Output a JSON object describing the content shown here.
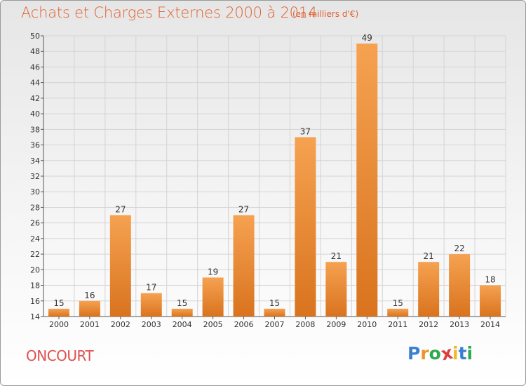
{
  "header": {
    "title": "Achats et Charges Externes 2000 à 2014",
    "unit": "(en milliers d'€)"
  },
  "footer": {
    "commune": "ONCOURT",
    "logo": [
      "P",
      "r",
      "o",
      "x",
      "i",
      "t",
      "i"
    ]
  },
  "colors": {
    "bar_light": "#f5a251",
    "bar_dark": "#d9731e",
    "title": "#e06030",
    "commune": "#e05050",
    "logo": [
      "#3a7fd0",
      "#f0932b",
      "#2fa84f",
      "#e03b3b",
      "#f0b92b",
      "#3a7fd0",
      "#2fa84f"
    ]
  },
  "chart_data": {
    "type": "bar",
    "title": "Achats et Charges Externes 2000 à 2014",
    "subtitle": "(en milliers d'€)",
    "categories": [
      "2000",
      "2001",
      "2002",
      "2003",
      "2004",
      "2005",
      "2006",
      "2007",
      "2008",
      "2009",
      "2010",
      "2011",
      "2012",
      "2013",
      "2014"
    ],
    "values": [
      15,
      16,
      27,
      17,
      15,
      19,
      27,
      15,
      37,
      21,
      49,
      15,
      21,
      22,
      18
    ],
    "ylim": [
      14,
      50
    ],
    "yticks": [
      14,
      16,
      18,
      20,
      22,
      24,
      26,
      28,
      30,
      32,
      34,
      36,
      38,
      40,
      42,
      44,
      46,
      48,
      50
    ],
    "grid": true,
    "legend": "none"
  }
}
